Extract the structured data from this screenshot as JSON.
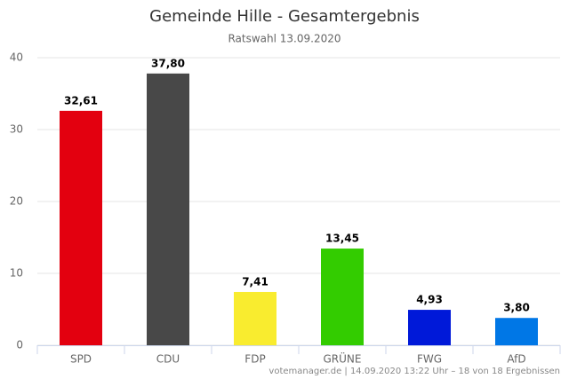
{
  "chart_data": {
    "type": "bar",
    "title": "Gemeinde Hille - Gesamtergebnis",
    "subtitle": "Ratswahl 13.09.2020",
    "categories": [
      "SPD",
      "CDU",
      "FDP",
      "GRÜNE",
      "FWG",
      "AfD"
    ],
    "values": [
      32.61,
      37.8,
      7.41,
      13.45,
      4.93,
      3.8
    ],
    "value_labels": [
      "32,61",
      "37,80",
      "7,41",
      "13,45",
      "4,93",
      "3,80"
    ],
    "colors": [
      "#e3000f",
      "#484848",
      "#f9ec2f",
      "#33cc00",
      "#0019d9",
      "#0077e6"
    ],
    "ylim": [
      0,
      40
    ],
    "yticks": [
      0,
      10,
      20,
      30,
      40
    ],
    "grid": true,
    "footer": "votemanager.de | 14.09.2020 13:22 Uhr – 18 von 18 Ergebnissen"
  }
}
